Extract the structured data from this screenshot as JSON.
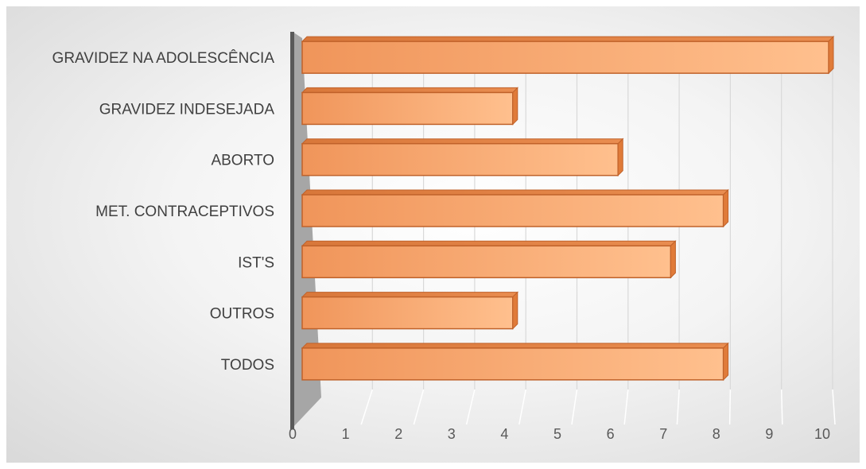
{
  "chart_data": {
    "type": "bar",
    "orientation": "horizontal",
    "style": "3d-clustered-bar",
    "categories": [
      "GRAVIDEZ NA ADOLESCÊNCIA",
      "GRAVIDEZ INDESEJADA",
      "ABORTO ",
      "MET. CONTRACEPTIVOS",
      "IST'S",
      "OUTROS",
      "TODOS "
    ],
    "values": [
      10,
      4,
      6,
      8,
      7,
      4,
      8
    ],
    "xlim": [
      0,
      10
    ],
    "xticks": [
      "0",
      "1",
      "2",
      "3",
      "4",
      "5",
      "6",
      "7",
      "8",
      "9",
      "10"
    ],
    "title": "",
    "xlabel": "",
    "ylabel": "",
    "grid": true,
    "legend": "none",
    "colors": {
      "bar_light": "#ffc08e",
      "bar_mid": "#f5a46a",
      "bar_dark": "#e07b39",
      "bar_edge": "#c0622a",
      "wall": "#7f7f7f",
      "wall_side": "#a6a6a6",
      "grid": "#d9d9d9"
    }
  }
}
